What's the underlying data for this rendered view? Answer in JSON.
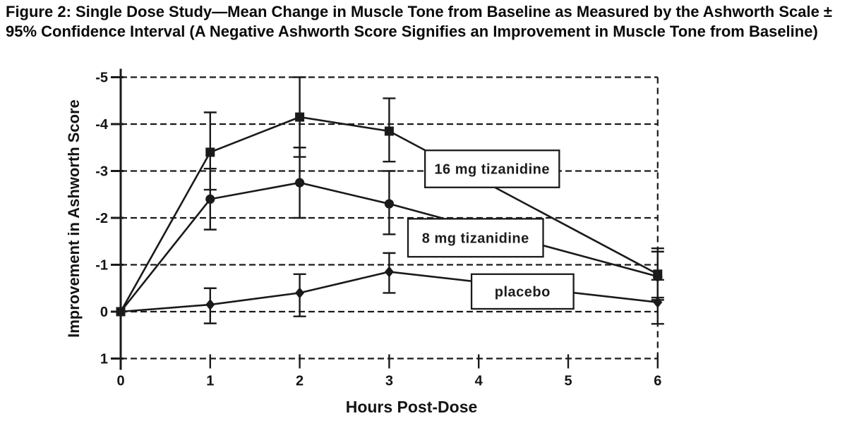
{
  "figure": {
    "title": "Figure 2: Single Dose Study—Mean Change in Muscle Tone from Baseline as Measured by the Ashworth Scale ± 95% Confidence Interval (A Negative Ashworth Score Signifies an Improvement in Muscle Tone from Baseline)"
  },
  "chart_data": {
    "type": "line",
    "title": "Single Dose Study — Mean Change in Muscle Tone from Baseline (Ashworth Scale) ± 95% CI",
    "xlabel": "Hours Post-Dose",
    "ylabel": "Improvement in Ashworth Score",
    "ink_color": "#1a1a1a",
    "background_color": "#ffffff",
    "grid": "dashed horizontal gridlines at every y tick; dashed vertical right border; solid left axis",
    "y_axis_inverted_note": "negative values plotted upward (negative Ashworth score = improvement)",
    "x_axis": {
      "ticks": [
        0,
        1,
        2,
        3,
        4,
        5,
        6
      ],
      "range": [
        0,
        6
      ]
    },
    "y_axis": {
      "ticks": [
        -5,
        -4,
        -3,
        -2,
        -1,
        0,
        1
      ],
      "range": [
        -5,
        1
      ]
    },
    "series": [
      {
        "name": "16 mg tizanidine",
        "marker": "square",
        "points": [
          {
            "x": 0,
            "y": 0
          },
          {
            "x": 1,
            "y": -3.4,
            "ci_from": -4.25,
            "ci_to": -2.6
          },
          {
            "x": 2,
            "y": -4.15,
            "ci_from": -5.0,
            "ci_to": -3.3
          },
          {
            "x": 3,
            "y": -3.85,
            "ci_from": -4.55,
            "ci_to": -3.2
          },
          {
            "x": 6,
            "y": -0.8,
            "ci_from": -1.35,
            "ci_to": -0.3
          }
        ]
      },
      {
        "name": "8 mg tizanidine",
        "marker": "circle",
        "points": [
          {
            "x": 0,
            "y": 0
          },
          {
            "x": 1,
            "y": -2.4,
            "ci_from": -3.05,
            "ci_to": -1.75
          },
          {
            "x": 2,
            "y": -2.75,
            "ci_from": -3.5,
            "ci_to": -2.0
          },
          {
            "x": 3,
            "y": -2.3,
            "ci_from": -3.0,
            "ci_to": -1.65
          },
          {
            "x": 6,
            "y": -0.75,
            "ci_from": -1.28,
            "ci_to": -0.25
          }
        ]
      },
      {
        "name": "placebo",
        "marker": "diamond",
        "points": [
          {
            "x": 0,
            "y": 0
          },
          {
            "x": 1,
            "y": -0.15,
            "ci_from": -0.5,
            "ci_to": 0.25
          },
          {
            "x": 2,
            "y": -0.4,
            "ci_from": -0.8,
            "ci_to": 0.1
          },
          {
            "x": 3,
            "y": -0.85,
            "ci_from": -1.25,
            "ci_to": -0.4
          },
          {
            "x": 6,
            "y": -0.2,
            "ci_from": -0.68,
            "ci_to": 0.26
          }
        ]
      }
    ],
    "annotations": [
      {
        "text": "16 mg tizanidine",
        "x_from": 3.4,
        "x_to": 4.9,
        "y_from": -3.44,
        "y_to": -2.65
      },
      {
        "text": "8 mg tizanidine",
        "x_from": 3.21,
        "x_to": 4.72,
        "y_from": -1.98,
        "y_to": -1.17
      },
      {
        "text": "placebo",
        "x_from": 3.92,
        "x_to": 5.06,
        "y_from": -0.8,
        "y_to": -0.06
      }
    ]
  }
}
